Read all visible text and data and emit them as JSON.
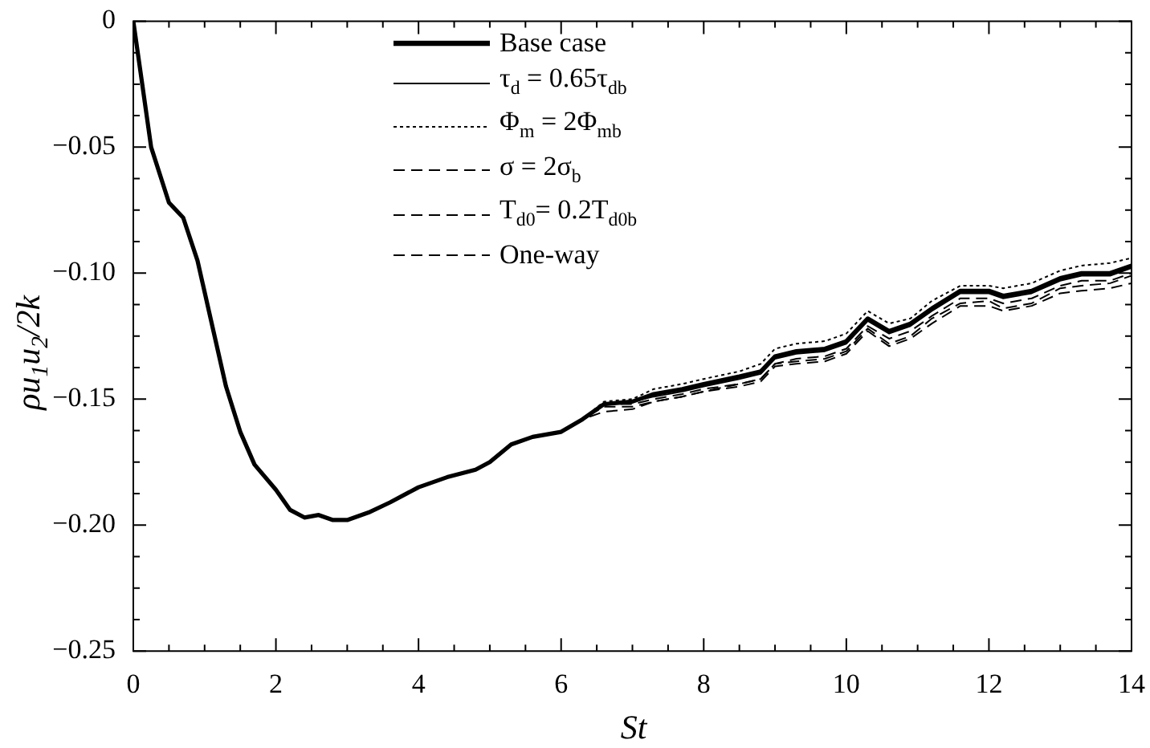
{
  "chart_data": {
    "type": "line",
    "xlabel": "St",
    "ylabel": "ρu$_{1}$u$_{2}$/2k",
    "legend": "top left",
    "grid": false,
    "marker": "none",
    "xlim": [
      0,
      14
    ],
    "ylim": [
      -0.25,
      0
    ],
    "xticks": [
      0,
      {
        "value": 0.5,
        "label": null
      },
      {
        "value": 1,
        "label": null
      },
      {
        "value": 1.5,
        "label": null
      },
      2,
      {
        "value": 2.5,
        "label": null
      },
      {
        "value": 3,
        "label": null
      },
      {
        "value": 3.5,
        "label": null
      },
      4,
      {
        "value": 4.5,
        "label": null
      },
      {
        "value": 5,
        "label": null
      },
      {
        "value": 5.5,
        "label": null
      },
      6,
      {
        "value": 6.5,
        "label": null
      },
      {
        "value": 7,
        "label": null
      },
      {
        "value": 7.5,
        "label": null
      },
      8,
      {
        "value": 8.5,
        "label": null
      },
      {
        "value": 9,
        "label": null
      },
      {
        "value": 9.5,
        "label": null
      },
      10,
      {
        "value": 10.5,
        "label": null
      },
      {
        "value": 11,
        "label": null
      },
      {
        "value": 11.5,
        "label": null
      },
      12,
      {
        "value": 12.5,
        "label": null
      },
      {
        "value": 13,
        "label": null
      },
      {
        "value": 13.5,
        "label": null
      },
      14
    ],
    "yticks": [
      {
        "value": -0.25,
        "label": "−0.25"
      },
      {
        "value": -0.2375,
        "label": null
      },
      {
        "value": -0.225,
        "label": null
      },
      {
        "value": -0.2125,
        "label": null
      },
      {
        "value": -0.2,
        "label": "−0.20"
      },
      {
        "value": -0.1875,
        "label": null
      },
      {
        "value": -0.175,
        "label": null
      },
      {
        "value": -0.1625,
        "label": null
      },
      {
        "value": -0.15,
        "label": "−0.15"
      },
      {
        "value": -0.1375,
        "label": null
      },
      {
        "value": -0.125,
        "label": null
      },
      {
        "value": -0.1125,
        "label": null
      },
      {
        "value": -0.1,
        "label": "−0.10"
      },
      {
        "value": -0.0875,
        "label": null
      },
      {
        "value": -0.075,
        "label": null
      },
      {
        "value": -0.0625,
        "label": null
      },
      {
        "value": -0.05,
        "label": "−0.05"
      },
      {
        "value": -0.0375,
        "label": null
      },
      {
        "value": -0.025,
        "label": null
      },
      {
        "value": -0.0125,
        "label": null
      },
      0
    ],
    "x": [
      0,
      0.1,
      0.25,
      0.5,
      0.7,
      0.9,
      1.1,
      1.3,
      1.5,
      1.7,
      2.0,
      2.2,
      2.4,
      2.6,
      2.8,
      3.0,
      3.3,
      3.6,
      4.0,
      4.4,
      4.8,
      5.0,
      5.3,
      5.6,
      6.0,
      6.3,
      6.6,
      7.0,
      7.3,
      7.7,
      8.0,
      8.5,
      8.8,
      9.0,
      9.3,
      9.7,
      10.0,
      10.3,
      10.6,
      10.9,
      11.2,
      11.6,
      12.0,
      12.2,
      12.6,
      13.0,
      13.3,
      13.7,
      14.0
    ],
    "series": [
      {
        "name": "Base case",
        "color": "#000000",
        "line_style": "solid",
        "values": [
          0,
          -0.02,
          -0.05,
          -0.072,
          -0.078,
          -0.095,
          -0.12,
          -0.145,
          -0.163,
          -0.176,
          -0.186,
          -0.194,
          -0.197,
          -0.196,
          -0.198,
          -0.198,
          -0.195,
          -0.191,
          -0.185,
          -0.181,
          -0.178,
          -0.175,
          -0.168,
          -0.165,
          -0.163,
          -0.158,
          -0.152,
          -0.151,
          -0.148,
          -0.146,
          -0.144,
          -0.141,
          -0.139,
          -0.133,
          -0.131,
          -0.13,
          -0.127,
          -0.118,
          -0.123,
          -0.12,
          -0.114,
          -0.107,
          -0.107,
          -0.109,
          -0.107,
          -0.102,
          -0.1,
          -0.1,
          -0.097
        ]
      },
      {
        "name": "τ$_{d}$ = 0.65τ$_{db}$",
        "color": "#000000",
        "line_style": "solid",
        "values": [
          0,
          -0.02,
          -0.05,
          -0.072,
          -0.078,
          -0.095,
          -0.12,
          -0.145,
          -0.163,
          -0.176,
          -0.186,
          -0.194,
          -0.197,
          -0.196,
          -0.198,
          -0.198,
          -0.195,
          -0.191,
          -0.185,
          -0.181,
          -0.178,
          -0.175,
          -0.168,
          -0.165,
          -0.163,
          -0.158,
          -0.152,
          -0.151,
          -0.149,
          -0.147,
          -0.145,
          -0.142,
          -0.14,
          -0.134,
          -0.132,
          -0.131,
          -0.128,
          -0.119,
          -0.124,
          -0.121,
          -0.115,
          -0.108,
          -0.108,
          -0.11,
          -0.108,
          -0.103,
          -0.101,
          -0.101,
          -0.098
        ]
      },
      {
        "name": "Φ$_{m}$ = 2Φ$_{mb}$",
        "color": "#000000",
        "line_style": "dotted",
        "values": [
          0,
          -0.02,
          -0.05,
          -0.072,
          -0.078,
          -0.095,
          -0.12,
          -0.145,
          -0.163,
          -0.176,
          -0.186,
          -0.194,
          -0.197,
          -0.196,
          -0.198,
          -0.198,
          -0.195,
          -0.191,
          -0.185,
          -0.181,
          -0.178,
          -0.175,
          -0.168,
          -0.165,
          -0.163,
          -0.158,
          -0.151,
          -0.15,
          -0.146,
          -0.144,
          -0.142,
          -0.139,
          -0.136,
          -0.13,
          -0.128,
          -0.127,
          -0.124,
          -0.115,
          -0.12,
          -0.118,
          -0.111,
          -0.105,
          -0.105,
          -0.106,
          -0.104,
          -0.099,
          -0.097,
          -0.096,
          -0.094
        ]
      },
      {
        "name": "σ = 2σ$_{b}$",
        "color": "#000000",
        "line_style": "dashed",
        "values": [
          0,
          -0.02,
          -0.05,
          -0.072,
          -0.078,
          -0.095,
          -0.12,
          -0.145,
          -0.163,
          -0.176,
          -0.186,
          -0.194,
          -0.197,
          -0.196,
          -0.198,
          -0.198,
          -0.195,
          -0.191,
          -0.185,
          -0.181,
          -0.178,
          -0.175,
          -0.168,
          -0.165,
          -0.163,
          -0.158,
          -0.155,
          -0.154,
          -0.151,
          -0.149,
          -0.147,
          -0.144,
          -0.142,
          -0.136,
          -0.134,
          -0.133,
          -0.13,
          -0.121,
          -0.126,
          -0.123,
          -0.117,
          -0.11,
          -0.11,
          -0.112,
          -0.11,
          -0.105,
          -0.103,
          -0.103,
          -0.1
        ]
      },
      {
        "name": "T$_{d0}$= 0.2T$_{d0b}$",
        "color": "#000000",
        "line_style": "dashed",
        "values": [
          0,
          -0.02,
          -0.05,
          -0.072,
          -0.078,
          -0.095,
          -0.12,
          -0.145,
          -0.163,
          -0.176,
          -0.186,
          -0.194,
          -0.197,
          -0.196,
          -0.198,
          -0.198,
          -0.195,
          -0.191,
          -0.185,
          -0.181,
          -0.178,
          -0.175,
          -0.168,
          -0.165,
          -0.163,
          -0.158,
          -0.153,
          -0.153,
          -0.151,
          -0.149,
          -0.147,
          -0.145,
          -0.143,
          -0.137,
          -0.136,
          -0.135,
          -0.132,
          -0.123,
          -0.129,
          -0.126,
          -0.12,
          -0.113,
          -0.113,
          -0.115,
          -0.113,
          -0.108,
          -0.107,
          -0.106,
          -0.104
        ]
      },
      {
        "name": "One-way",
        "color": "#000000",
        "line_style": "dashed",
        "values": [
          0,
          -0.02,
          -0.05,
          -0.072,
          -0.078,
          -0.095,
          -0.12,
          -0.145,
          -0.163,
          -0.176,
          -0.186,
          -0.194,
          -0.197,
          -0.196,
          -0.198,
          -0.198,
          -0.195,
          -0.191,
          -0.185,
          -0.181,
          -0.178,
          -0.175,
          -0.168,
          -0.165,
          -0.163,
          -0.158,
          -0.152,
          -0.152,
          -0.15,
          -0.148,
          -0.146,
          -0.144,
          -0.142,
          -0.136,
          -0.135,
          -0.134,
          -0.131,
          -0.122,
          -0.128,
          -0.125,
          -0.118,
          -0.112,
          -0.111,
          -0.114,
          -0.112,
          -0.106,
          -0.105,
          -0.104,
          -0.101
        ]
      }
    ]
  }
}
